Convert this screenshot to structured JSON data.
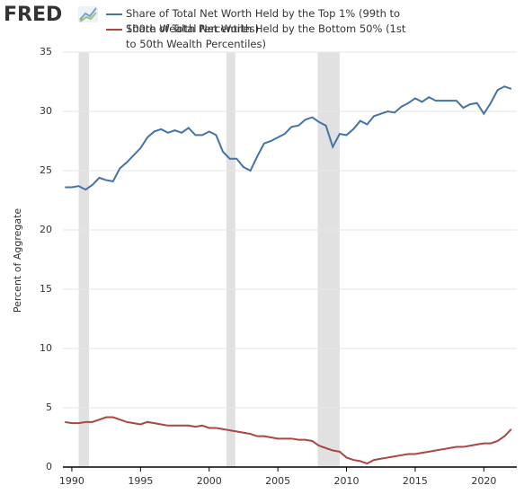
{
  "logo": "FRED",
  "chart_data": {
    "type": "line",
    "y_label": "Percent of Aggregate",
    "x": [
      1989.5,
      1990.0,
      1990.5,
      1991.0,
      1991.5,
      1992.0,
      1992.5,
      1993.0,
      1993.5,
      1994.0,
      1994.5,
      1995.0,
      1995.5,
      1996.0,
      1996.5,
      1997.0,
      1997.5,
      1998.0,
      1998.5,
      1999.0,
      1999.5,
      2000.0,
      2000.5,
      2001.0,
      2001.5,
      2002.0,
      2002.5,
      2003.0,
      2003.5,
      2004.0,
      2004.5,
      2005.0,
      2005.5,
      2006.0,
      2006.5,
      2007.0,
      2007.5,
      2008.0,
      2008.5,
      2009.0,
      2009.5,
      2010.0,
      2010.5,
      2011.0,
      2011.5,
      2012.0,
      2012.5,
      2013.0,
      2013.5,
      2014.0,
      2014.5,
      2015.0,
      2015.5,
      2016.0,
      2016.5,
      2017.0,
      2017.5,
      2018.0,
      2018.5,
      2019.0,
      2019.5,
      2020.0,
      2020.5,
      2021.0,
      2021.5,
      2022.0
    ],
    "series": [
      {
        "name": "Share of Total Net Worth Held by the Top 1% (99th to 100th Wealth Percentiles)",
        "color": "#4572a7",
        "values": [
          23.6,
          23.6,
          23.7,
          23.4,
          23.8,
          24.4,
          24.2,
          24.1,
          25.2,
          25.7,
          26.3,
          26.9,
          27.8,
          28.3,
          28.5,
          28.2,
          28.4,
          28.2,
          28.6,
          28.0,
          28.0,
          28.3,
          28.0,
          26.6,
          26.0,
          26.0,
          25.3,
          25.0,
          26.2,
          27.3,
          27.5,
          27.8,
          28.1,
          28.7,
          28.8,
          29.3,
          29.5,
          29.1,
          28.8,
          27.0,
          28.1,
          28.0,
          28.5,
          29.2,
          28.9,
          29.6,
          29.8,
          30.0,
          29.9,
          30.4,
          30.7,
          31.1,
          30.8,
          31.2,
          30.9,
          30.9,
          30.9,
          30.9,
          30.3,
          30.6,
          30.7,
          29.8,
          30.7,
          31.8,
          32.1,
          31.9
        ]
      },
      {
        "name": "Share of Total Net Worth Held by the Bottom 50% (1st to 50th Wealth Percentiles)",
        "color": "#aa4643",
        "values": [
          3.8,
          3.7,
          3.7,
          3.8,
          3.8,
          4.0,
          4.2,
          4.2,
          4.0,
          3.8,
          3.7,
          3.6,
          3.8,
          3.7,
          3.6,
          3.5,
          3.5,
          3.5,
          3.5,
          3.4,
          3.5,
          3.3,
          3.3,
          3.2,
          3.1,
          3.0,
          2.9,
          2.8,
          2.6,
          2.6,
          2.5,
          2.4,
          2.4,
          2.4,
          2.3,
          2.3,
          2.2,
          1.8,
          1.6,
          1.4,
          1.3,
          0.8,
          0.6,
          0.5,
          0.3,
          0.6,
          0.7,
          0.8,
          0.9,
          1.0,
          1.1,
          1.1,
          1.2,
          1.3,
          1.4,
          1.5,
          1.6,
          1.7,
          1.7,
          1.8,
          1.9,
          2.0,
          2.0,
          2.2,
          2.6,
          3.2
        ]
      }
    ],
    "shaded_periods": [
      [
        1990.5,
        1991.25
      ],
      [
        2001.25,
        2001.9
      ],
      [
        2007.9,
        2009.5
      ]
    ],
    "xlim": [
      1989.35,
      2022.4
    ],
    "xticks": [
      1990,
      1995,
      2000,
      2005,
      2010,
      2015,
      2020
    ],
    "ylim": [
      0,
      35
    ],
    "yticks": [
      0,
      5,
      10,
      15,
      20,
      25,
      30,
      35
    ],
    "grid": true
  }
}
